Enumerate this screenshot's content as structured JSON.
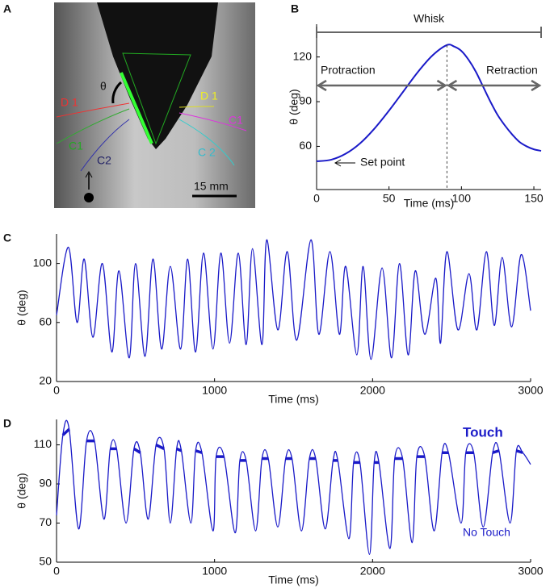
{
  "image_panel": {
    "panel": "A",
    "angle": "θ",
    "left_labels": [
      "D 1",
      "C1",
      "C2"
    ],
    "right_labels": [
      "D 1",
      "C1",
      "C 2"
    ],
    "scale": "15 mm"
  },
  "chart_data": [
    {
      "type": "line",
      "panel": "B",
      "xlabel": "Time (ms)",
      "ylabel": "θ (deg)",
      "annotations": [
        "Whisk",
        "Protraction",
        "Retraction",
        "Set point"
      ],
      "x": [
        0,
        10,
        20,
        30,
        40,
        50,
        60,
        70,
        80,
        90,
        95,
        100,
        105,
        110,
        115,
        120,
        125,
        130,
        135,
        140,
        145,
        150,
        155
      ],
      "series": [
        {
          "name": "θ",
          "color": "#1a1ac8",
          "width": 2,
          "values": [
            50,
            51,
            55,
            62,
            72,
            84,
            97,
            110,
            121,
            128,
            127,
            124,
            118,
            110,
            100,
            90,
            81,
            74,
            68,
            63,
            60,
            58,
            57
          ]
        }
      ],
      "xlim": [
        0,
        155
      ],
      "ylim": [
        31,
        142
      ],
      "xticks": [
        0,
        50,
        100,
        150
      ],
      "yticks": [
        60,
        90,
        120
      ]
    },
    {
      "type": "line",
      "panel": "C",
      "xlabel": "Time (ms)",
      "ylabel": "θ (deg)",
      "x": [
        0,
        75,
        130,
        175,
        230,
        290,
        350,
        395,
        460,
        500,
        560,
        610,
        665,
        720,
        785,
        830,
        880,
        930,
        990,
        1040,
        1095,
        1150,
        1200,
        1240,
        1300,
        1330,
        1400,
        1460,
        1520,
        1610,
        1660,
        1730,
        1790,
        1830,
        1900,
        1940,
        1990,
        2060,
        2120,
        2170,
        2225,
        2270,
        2330,
        2400,
        2430,
        2470,
        2540,
        2610,
        2660,
        2720,
        2770,
        2820,
        2880,
        2940,
        3000
      ],
      "series": [
        {
          "name": "θ",
          "color": "#1a1ac8",
          "width": 1.3,
          "values": [
            65,
            111,
            60,
            103,
            50,
            100,
            40,
            95,
            36,
            100,
            37,
            103,
            42,
            98,
            42,
            103,
            40,
            107,
            42,
            107,
            46,
            107,
            45,
            110,
            45,
            116,
            55,
            108,
            48,
            116,
            52,
            108,
            52,
            98,
            38,
            98,
            35,
            97,
            36,
            100,
            38,
            95,
            52,
            90,
            46,
            108,
            55,
            93,
            55,
            108,
            58,
            104,
            57,
            106,
            68
          ]
        }
      ],
      "xlim": [
        0,
        3000
      ],
      "ylim": [
        20,
        120
      ],
      "xticks": [
        0,
        1000,
        2000,
        3000
      ],
      "yticks": [
        20,
        60,
        100
      ]
    },
    {
      "type": "line",
      "panel": "D",
      "xlabel": "Time (ms)",
      "ylabel": "θ (deg)",
      "x": [
        0,
        40,
        80,
        140,
        190,
        240,
        300,
        340,
        380,
        440,
        490,
        530,
        580,
        630,
        680,
        720,
        760,
        790,
        850,
        880,
        920,
        990,
        1010,
        1060,
        1130,
        1160,
        1200,
        1260,
        1300,
        1340,
        1400,
        1450,
        1490,
        1550,
        1600,
        1640,
        1700,
        1750,
        1780,
        1850,
        1880,
        1920,
        1980,
        2010,
        2040,
        2110,
        2140,
        2190,
        2250,
        2280,
        2330,
        2390,
        2440,
        2480,
        2560,
        2590,
        2640,
        2700,
        2760,
        2800,
        2870,
        2910,
        2950,
        3000
      ],
      "series": [
        {
          "name": "No Touch",
          "color": "#1a1ac8",
          "width": 1.3,
          "values": [
            74,
            115,
            118,
            67,
            112,
            112,
            72,
            108,
            108,
            70,
            108,
            106,
            72,
            110,
            108,
            70,
            108,
            107,
            70,
            107,
            106,
            66,
            104,
            104,
            65,
            102,
            102,
            66,
            103,
            103,
            68,
            103,
            103,
            66,
            103,
            103,
            67,
            102,
            102,
            62,
            101,
            101,
            54,
            101,
            101,
            57,
            103,
            103,
            60,
            104,
            104,
            66,
            106,
            106,
            70,
            106,
            106,
            68,
            106,
            107,
            70,
            107,
            106,
            100
          ]
        },
        {
          "name": "Touch",
          "color": "#1a1ac8",
          "width": 3.5,
          "values": [
            null,
            115,
            118,
            null,
            112,
            112,
            null,
            108,
            108,
            null,
            108,
            106,
            null,
            110,
            108,
            null,
            108,
            107,
            null,
            107,
            106,
            null,
            104,
            104,
            null,
            102,
            102,
            null,
            103,
            103,
            null,
            103,
            103,
            null,
            103,
            103,
            null,
            102,
            102,
            null,
            101,
            101,
            null,
            101,
            101,
            null,
            103,
            103,
            null,
            104,
            104,
            null,
            106,
            106,
            null,
            106,
            106,
            null,
            106,
            107,
            null,
            107,
            106,
            null
          ]
        }
      ],
      "xlim": [
        0,
        3000
      ],
      "ylim": [
        50,
        123
      ],
      "xticks": [
        0,
        1000,
        2000,
        3000
      ],
      "yticks": [
        50,
        70,
        90,
        110
      ]
    }
  ]
}
